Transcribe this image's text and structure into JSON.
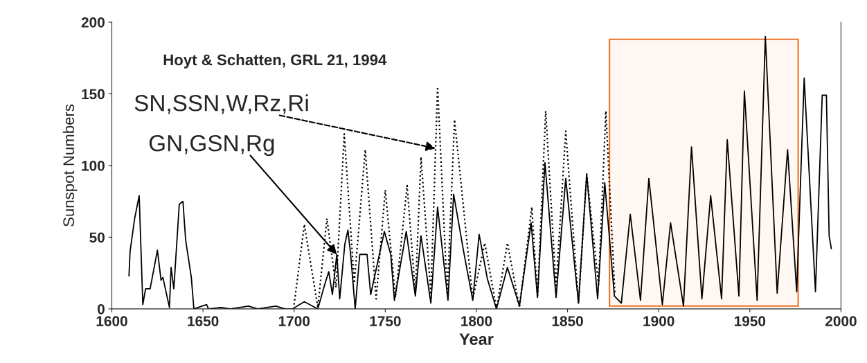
{
  "chart_data": {
    "type": "line",
    "xlabel": "Year",
    "ylabel": "Sunspot Numbers",
    "xlim": [
      1600,
      2000
    ],
    "xticks": [
      1600,
      1650,
      1700,
      1750,
      1800,
      1850,
      1900,
      1950,
      2000
    ],
    "ylim": [
      0,
      200
    ],
    "yticks": [
      0,
      50,
      100,
      150,
      200
    ],
    "grid": false,
    "legend": false,
    "marker": "none",
    "series": [
      {
        "color": "#000000",
        "line_style": "solid",
        "x": [
          1609.4,
          1610,
          1612.5,
          1615,
          1617,
          1618.5,
          1621,
          1625,
          1627,
          1628,
          1631.6,
          1632.5,
          1634,
          1637,
          1639,
          1640.5,
          1643.6,
          1645,
          1652,
          1653,
          1660,
          1665,
          1670,
          1675,
          1680,
          1685,
          1690,
          1695,
          1699,
          1705.6,
          1713,
          1717,
          1719,
          1721,
          1723.4,
          1725,
          1727.8,
          1729.5,
          1731,
          1733.5,
          1736,
          1740,
          1742,
          1749.5,
          1753,
          1755,
          1761.5,
          1766.5,
          1769.6,
          1775,
          1778.7,
          1784.4,
          1787.5,
          1793,
          1798,
          1801.5,
          1806,
          1811,
          1817,
          1823.6,
          1830,
          1833.5,
          1837.6,
          1843.7,
          1849,
          1856,
          1860.5,
          1866.5,
          1870.4,
          1875.7,
          1879.5,
          1884.4,
          1890,
          1894.6,
          1902,
          1906.5,
          1913.6,
          1918,
          1923.7,
          1928.5,
          1934.5,
          1937.6,
          1944,
          1947,
          1954,
          1958.5,
          1965,
          1970.7,
          1975.7,
          1979.8,
          1986,
          1989.7,
          1992,
          1993.5,
          1994.7
        ],
        "values": [
          23,
          40,
          63,
          79,
          3,
          14,
          14,
          41,
          20,
          22,
          1,
          29,
          14,
          73,
          75,
          48,
          22,
          0,
          3,
          0,
          1,
          0,
          1,
          2,
          0,
          1,
          2,
          0,
          0,
          5,
          0,
          18,
          26,
          10,
          38,
          7,
          45,
          55,
          38,
          0,
          38,
          38,
          10,
          54,
          38,
          6,
          54,
          9,
          51,
          4,
          71,
          6,
          80,
          40,
          6,
          52,
          21,
          0,
          29,
          2,
          60,
          8,
          102,
          8,
          91,
          4,
          94,
          7,
          88,
          9,
          4,
          66,
          6,
          91,
          3,
          60,
          2,
          113,
          7,
          79,
          7,
          118,
          9,
          152,
          6,
          190,
          11,
          111,
          12,
          161,
          12,
          149,
          149,
          51,
          42
        ]
      },
      {
        "color": "#000000",
        "line_style": "dotted",
        "x": [
          1700,
          1705.6,
          1713,
          1718,
          1723,
          1727.5,
          1733,
          1739,
          1745,
          1750,
          1755.6,
          1762,
          1766.5,
          1769.6,
          1775,
          1778.7,
          1784,
          1788,
          1798,
          1804.6,
          1811,
          1817,
          1823.6,
          1830.4,
          1833.5,
          1838,
          1843.7,
          1849,
          1856,
          1860.5,
          1867,
          1871,
          1876
        ],
        "values": [
          3,
          59,
          1,
          63,
          15,
          122,
          18,
          111,
          7,
          83,
          8,
          86,
          11,
          106,
          10,
          155,
          10,
          132,
          7,
          46,
          0,
          46,
          1,
          71,
          8,
          138,
          15,
          124,
          4,
          94,
          17,
          138,
          10
        ]
      }
    ],
    "annotations": [
      "Hoyt & Schatten, GRL 21, 1994",
      {
        "text": "GN,GSN,Rg",
        "x": 1723.4,
        "y": 38
      },
      {
        "text": "SN,SSN,W,Rz,Ri",
        "x": 1777.6,
        "y": 112
      }
    ],
    "bands": [
      {
        "axis": "x",
        "from": 1873,
        "to": 1976.5,
        "color": "#f07020"
      }
    ]
  }
}
